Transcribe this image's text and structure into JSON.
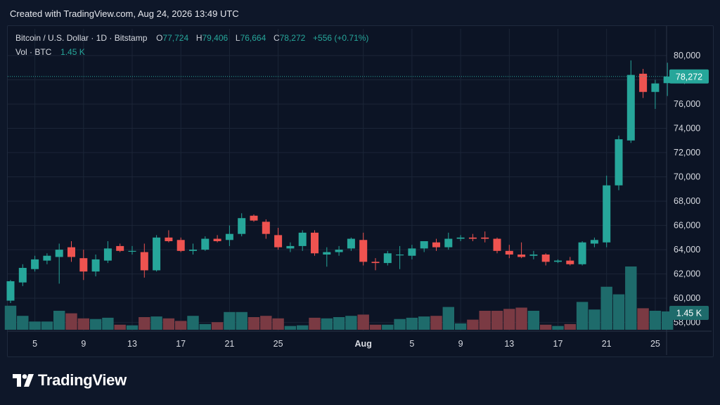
{
  "header": {
    "created": "Created with TradingView.com, Aug 24, 2026 13:49 UTC"
  },
  "legend": {
    "symbol": "Bitcoin / U.S. Dollar · 1D · Bitstamp",
    "o_label": "O",
    "o": "77,724",
    "h_label": "H",
    "h": "79,406",
    "l_label": "L",
    "l": "76,664",
    "c_label": "C",
    "c": "78,272",
    "change": "+556 (+0.71%)",
    "vol_label": "Vol · BTC",
    "vol": "1.45 K"
  },
  "footer": {
    "brand": "TradingView",
    "logo_icon": "tradingview-logo-icon"
  },
  "colors": {
    "up": "#26a69a",
    "down": "#ef5350",
    "up_vol": "#1e6b6b",
    "down_vol": "#7a3a43",
    "bg": "#0e1729"
  },
  "chart_data": {
    "type": "candlestick",
    "y_ticks": [
      58000,
      60000,
      62000,
      64000,
      66000,
      68000,
      70000,
      72000,
      74000,
      76000,
      78000,
      80000
    ],
    "y_tick_labels": [
      "58,000",
      "60,000",
      "62,000",
      "64,000",
      "66,000",
      "68,000",
      "70,000",
      "72,000",
      "74,000",
      "76,000",
      "78,000",
      "80,000"
    ],
    "y_range": [
      57400,
      82200
    ],
    "x_ticks": [
      {
        "index": 2,
        "label": "5"
      },
      {
        "index": 6,
        "label": "9"
      },
      {
        "index": 10,
        "label": "13"
      },
      {
        "index": 14,
        "label": "17"
      },
      {
        "index": 18,
        "label": "21"
      },
      {
        "index": 22,
        "label": "25"
      },
      {
        "index": 29,
        "label": "Aug"
      },
      {
        "index": 33,
        "label": "5"
      },
      {
        "index": 37,
        "label": "9"
      },
      {
        "index": 41,
        "label": "13"
      },
      {
        "index": 45,
        "label": "17"
      },
      {
        "index": 49,
        "label": "21"
      },
      {
        "index": 53,
        "label": "25"
      }
    ],
    "last_price": 78272,
    "last_price_label": "78,272",
    "volume_label": "1.45 K",
    "volume_range": [
      0,
      6000
    ],
    "candles": [
      {
        "o": 59800,
        "h": 61500,
        "l": 59600,
        "c": 61400,
        "v": 1900
      },
      {
        "o": 61300,
        "h": 62800,
        "l": 61000,
        "c": 62500,
        "v": 1100
      },
      {
        "o": 62400,
        "h": 63500,
        "l": 62200,
        "c": 63200,
        "v": 650
      },
      {
        "o": 63100,
        "h": 63700,
        "l": 62800,
        "c": 63500,
        "v": 650
      },
      {
        "o": 63400,
        "h": 64500,
        "l": 61200,
        "c": 64000,
        "v": 1500
      },
      {
        "o": 64200,
        "h": 64700,
        "l": 63000,
        "c": 63400,
        "v": 1300
      },
      {
        "o": 63300,
        "h": 64000,
        "l": 61500,
        "c": 62200,
        "v": 900
      },
      {
        "o": 62200,
        "h": 63600,
        "l": 61800,
        "c": 63200,
        "v": 850
      },
      {
        "o": 63100,
        "h": 64700,
        "l": 62900,
        "c": 64100,
        "v": 950
      },
      {
        "o": 64300,
        "h": 64500,
        "l": 63800,
        "c": 63900,
        "v": 400
      },
      {
        "o": 63900,
        "h": 64300,
        "l": 63600,
        "c": 63900,
        "v": 350
      },
      {
        "o": 63800,
        "h": 64500,
        "l": 61700,
        "c": 62300,
        "v": 1000
      },
      {
        "o": 62300,
        "h": 65200,
        "l": 62200,
        "c": 65000,
        "v": 1050
      },
      {
        "o": 65000,
        "h": 65600,
        "l": 64600,
        "c": 64700,
        "v": 900
      },
      {
        "o": 64800,
        "h": 65000,
        "l": 63800,
        "c": 63900,
        "v": 700
      },
      {
        "o": 63900,
        "h": 64500,
        "l": 63600,
        "c": 64000,
        "v": 1100
      },
      {
        "o": 64000,
        "h": 65100,
        "l": 63900,
        "c": 64900,
        "v": 450
      },
      {
        "o": 64900,
        "h": 65200,
        "l": 64600,
        "c": 64700,
        "v": 600
      },
      {
        "o": 64800,
        "h": 66000,
        "l": 64300,
        "c": 65300,
        "v": 1400
      },
      {
        "o": 65300,
        "h": 67000,
        "l": 65100,
        "c": 66600,
        "v": 1400
      },
      {
        "o": 66800,
        "h": 66900,
        "l": 66300,
        "c": 66400,
        "v": 1000
      },
      {
        "o": 66300,
        "h": 66500,
        "l": 64900,
        "c": 65300,
        "v": 1100
      },
      {
        "o": 65200,
        "h": 65800,
        "l": 64000,
        "c": 64200,
        "v": 900
      },
      {
        "o": 64100,
        "h": 64600,
        "l": 63800,
        "c": 64300,
        "v": 300
      },
      {
        "o": 64300,
        "h": 65600,
        "l": 63900,
        "c": 65400,
        "v": 350
      },
      {
        "o": 65400,
        "h": 65600,
        "l": 63500,
        "c": 63700,
        "v": 950
      },
      {
        "o": 63600,
        "h": 64200,
        "l": 62600,
        "c": 63800,
        "v": 900
      },
      {
        "o": 63800,
        "h": 64300,
        "l": 63500,
        "c": 64000,
        "v": 1000
      },
      {
        "o": 64100,
        "h": 65000,
        "l": 63900,
        "c": 64900,
        "v": 1100
      },
      {
        "o": 64800,
        "h": 65400,
        "l": 62700,
        "c": 63000,
        "v": 1200
      },
      {
        "o": 63000,
        "h": 63300,
        "l": 62300,
        "c": 62900,
        "v": 400
      },
      {
        "o": 62900,
        "h": 63900,
        "l": 62700,
        "c": 63700,
        "v": 400
      },
      {
        "o": 63600,
        "h": 64300,
        "l": 62400,
        "c": 63600,
        "v": 850
      },
      {
        "o": 63500,
        "h": 64400,
        "l": 63200,
        "c": 64100,
        "v": 950
      },
      {
        "o": 64100,
        "h": 64700,
        "l": 63800,
        "c": 64700,
        "v": 1050
      },
      {
        "o": 64600,
        "h": 64900,
        "l": 63900,
        "c": 64200,
        "v": 1100
      },
      {
        "o": 64200,
        "h": 65400,
        "l": 64000,
        "c": 64900,
        "v": 1800
      },
      {
        "o": 64900,
        "h": 65200,
        "l": 64700,
        "c": 65000,
        "v": 500
      },
      {
        "o": 65000,
        "h": 65300,
        "l": 64700,
        "c": 64900,
        "v": 800
      },
      {
        "o": 65000,
        "h": 65500,
        "l": 64600,
        "c": 64900,
        "v": 1500
      },
      {
        "o": 64900,
        "h": 65000,
        "l": 63700,
        "c": 63900,
        "v": 1500
      },
      {
        "o": 63900,
        "h": 64400,
        "l": 63300,
        "c": 63600,
        "v": 1650
      },
      {
        "o": 63600,
        "h": 64600,
        "l": 63300,
        "c": 63400,
        "v": 1750
      },
      {
        "o": 63500,
        "h": 63900,
        "l": 63200,
        "c": 63600,
        "v": 1500
      },
      {
        "o": 63600,
        "h": 63700,
        "l": 62700,
        "c": 63000,
        "v": 400
      },
      {
        "o": 63000,
        "h": 63200,
        "l": 62900,
        "c": 63100,
        "v": 300
      },
      {
        "o": 63100,
        "h": 63400,
        "l": 62700,
        "c": 62800,
        "v": 450
      },
      {
        "o": 62800,
        "h": 64700,
        "l": 62700,
        "c": 64600,
        "v": 2200
      },
      {
        "o": 64500,
        "h": 65000,
        "l": 64200,
        "c": 64800,
        "v": 1600
      },
      {
        "o": 64600,
        "h": 70100,
        "l": 64200,
        "c": 69300,
        "v": 3400
      },
      {
        "o": 69300,
        "h": 73400,
        "l": 68900,
        "c": 73100,
        "v": 2800
      },
      {
        "o": 73000,
        "h": 79600,
        "l": 72800,
        "c": 78400,
        "v": 5000
      },
      {
        "o": 78500,
        "h": 78900,
        "l": 76500,
        "c": 77000,
        "v": 1700
      },
      {
        "o": 77000,
        "h": 78000,
        "l": 75600,
        "c": 77700,
        "v": 1500
      },
      {
        "o": 77724,
        "h": 79406,
        "l": 76664,
        "c": 78272,
        "v": 1450
      }
    ]
  }
}
